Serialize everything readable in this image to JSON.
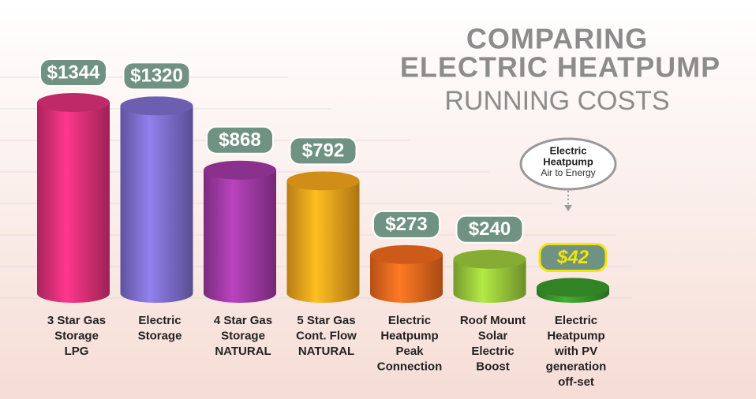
{
  "chart_data": {
    "type": "cylinder-bar",
    "title": [
      "COMPARING",
      "ELECTRIC HEATPUMP",
      "RUNNING COSTS"
    ],
    "categories": [
      [
        "3 Star Gas",
        "Storage",
        "LPG"
      ],
      [
        "Electric",
        "Storage"
      ],
      [
        "4 Star Gas",
        "Storage",
        "NATURAL"
      ],
      [
        "5 Star Gas",
        "Cont. Flow",
        "NATURAL"
      ],
      [
        "Electric",
        "Heatpump",
        "Peak",
        "Connection"
      ],
      [
        "Roof Mount",
        "Solar",
        "Electric",
        "Boost"
      ],
      [
        "Electric",
        "Heatpump",
        "with PV",
        "generation",
        "off-set"
      ]
    ],
    "values": [
      1344,
      1320,
      868,
      792,
      273,
      240,
      42
    ],
    "value_labels": [
      "$1344",
      "$1320",
      "$868",
      "$792",
      "$273",
      "$240",
      "$42"
    ],
    "colors": [
      "#e0307a",
      "#7f6fd0",
      "#a23aa6",
      "#f5a61c",
      "#f26a1e",
      "#9ccc3c",
      "#3a9a2c"
    ],
    "annotation": {
      "heading": [
        "Electric",
        "Heatpump"
      ],
      "text": "Air to Energy"
    }
  }
}
